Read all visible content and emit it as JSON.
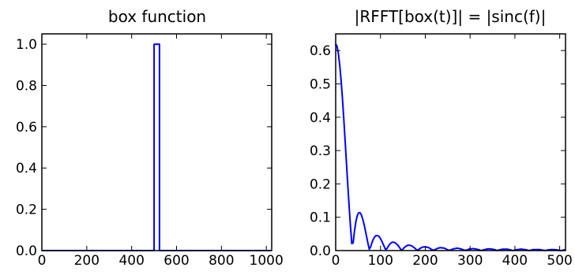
{
  "chart_data": [
    {
      "type": "line",
      "title": "box function",
      "xlabel": "",
      "ylabel": "",
      "xlim": [
        0,
        1024
      ],
      "ylim": [
        0.0,
        1.05
      ],
      "xticks": [
        0,
        200,
        400,
        600,
        800,
        1000
      ],
      "yticks": [
        0.0,
        0.2,
        0.4,
        0.6,
        0.8,
        1.0
      ],
      "xtick_labels": [
        "0",
        "200",
        "400",
        "600",
        "800",
        "1000"
      ],
      "ytick_labels": [
        "0.0",
        "0.2",
        "0.4",
        "0.6",
        "0.8",
        "1.0"
      ],
      "grid": false,
      "series": [
        {
          "color": "#0000ff",
          "x": [
            0,
            500,
            500,
            524,
            524,
            1024
          ],
          "y": [
            0,
            0,
            1,
            1,
            0,
            0
          ]
        }
      ]
    },
    {
      "type": "line",
      "title": "|RFFT[box(t)]| = |sinc(f)|",
      "xlabel": "",
      "ylabel": "",
      "xlim": [
        0,
        513
      ],
      "ylim": [
        0.0,
        0.65
      ],
      "xticks": [
        0,
        100,
        200,
        300,
        400,
        500
      ],
      "yticks": [
        0.0,
        0.1,
        0.2,
        0.3,
        0.4,
        0.5,
        0.6
      ],
      "xtick_labels": [
        "0",
        "100",
        "200",
        "300",
        "400",
        "500"
      ],
      "ytick_labels": [
        "0.0",
        "0.1",
        "0.2",
        "0.3",
        "0.4",
        "0.5",
        "0.6"
      ],
      "grid": false,
      "series": [
        {
          "color": "#0000ff",
          "x": [
            0,
            3,
            6,
            9,
            12,
            15,
            18,
            21,
            24,
            27,
            30,
            33,
            36,
            39,
            42,
            45,
            48,
            51,
            54,
            57,
            60,
            63,
            66,
            69,
            72,
            75,
            78,
            81,
            84,
            87,
            90,
            93,
            96,
            99,
            102,
            105,
            108,
            111,
            114,
            117,
            120,
            123,
            126,
            129,
            132,
            135,
            138,
            141,
            144,
            147,
            150,
            153,
            156,
            159,
            162,
            165,
            168,
            171,
            174,
            177,
            180,
            183,
            186,
            189,
            192,
            195,
            198,
            201,
            204,
            207,
            210,
            213,
            216,
            219,
            222,
            225,
            228,
            231,
            234,
            237,
            240,
            243,
            246,
            249,
            252,
            255,
            258,
            261,
            264,
            267,
            270,
            273,
            276,
            279,
            282,
            285,
            288,
            291,
            294,
            297,
            300,
            303,
            306,
            309,
            312,
            315,
            318,
            321,
            324,
            327,
            330,
            333,
            336,
            339,
            342,
            345,
            348,
            351,
            354,
            357,
            360,
            363,
            366,
            369,
            372,
            375,
            378,
            381,
            384,
            387,
            390,
            393,
            396,
            399,
            402,
            405,
            408,
            411,
            414,
            417,
            420,
            423,
            426,
            429,
            432,
            435,
            438,
            441,
            444,
            447,
            450,
            453,
            456,
            459,
            462,
            465,
            468,
            471,
            474,
            477,
            480,
            483,
            486,
            489,
            492,
            495,
            498,
            501,
            504,
            507,
            510,
            513
          ],
          "y": [
            0.62,
            0.613,
            0.591,
            0.557,
            0.512,
            0.458,
            0.397,
            0.331,
            0.264,
            0.197,
            0.133,
            0.073,
            0.021,
            0.023,
            0.059,
            0.086,
            0.104,
            0.113,
            0.114,
            0.108,
            0.096,
            0.081,
            0.062,
            0.042,
            0.022,
            0.004,
            0.011,
            0.024,
            0.034,
            0.041,
            0.045,
            0.045,
            0.043,
            0.038,
            0.031,
            0.022,
            0.013,
            0.004,
            0.005,
            0.012,
            0.018,
            0.022,
            0.025,
            0.025,
            0.024,
            0.021,
            0.017,
            0.012,
            0.006,
            0.001,
            0.004,
            0.009,
            0.012,
            0.015,
            0.016,
            0.016,
            0.015,
            0.013,
            0.01,
            0.007,
            0.003,
            0.001,
            0.004,
            0.007,
            0.009,
            0.011,
            0.011,
            0.011,
            0.01,
            0.009,
            0.007,
            0.004,
            0.002,
            0.001,
            0.003,
            0.005,
            0.007,
            0.008,
            0.009,
            0.008,
            0.008,
            0.007,
            0.005,
            0.003,
            0.001,
            0.001,
            0.003,
            0.004,
            0.006,
            0.006,
            0.007,
            0.007,
            0.006,
            0.005,
            0.004,
            0.002,
            0.001,
            0.001,
            0.002,
            0.004,
            0.005,
            0.005,
            0.006,
            0.005,
            0.005,
            0.004,
            0.003,
            0.002,
            0.0,
            0.001,
            0.002,
            0.003,
            0.004,
            0.005,
            0.005,
            0.005,
            0.004,
            0.004,
            0.003,
            0.002,
            0.0,
            0.001,
            0.002,
            0.003,
            0.004,
            0.004,
            0.004,
            0.004,
            0.004,
            0.003,
            0.002,
            0.001,
            0.0,
            0.001,
            0.002,
            0.003,
            0.003,
            0.004,
            0.004,
            0.004,
            0.003,
            0.003,
            0.002,
            0.001,
            0.0,
            0.001,
            0.002,
            0.003,
            0.003,
            0.003,
            0.003,
            0.003,
            0.003,
            0.002,
            0.001,
            0.001,
            0.0,
            0.001,
            0.002,
            0.002,
            0.003,
            0.003,
            0.003,
            0.003,
            0.002,
            0.002,
            0.001,
            0.0,
            0.0,
            0.001,
            0.002,
            0.002
          ]
        }
      ]
    }
  ]
}
